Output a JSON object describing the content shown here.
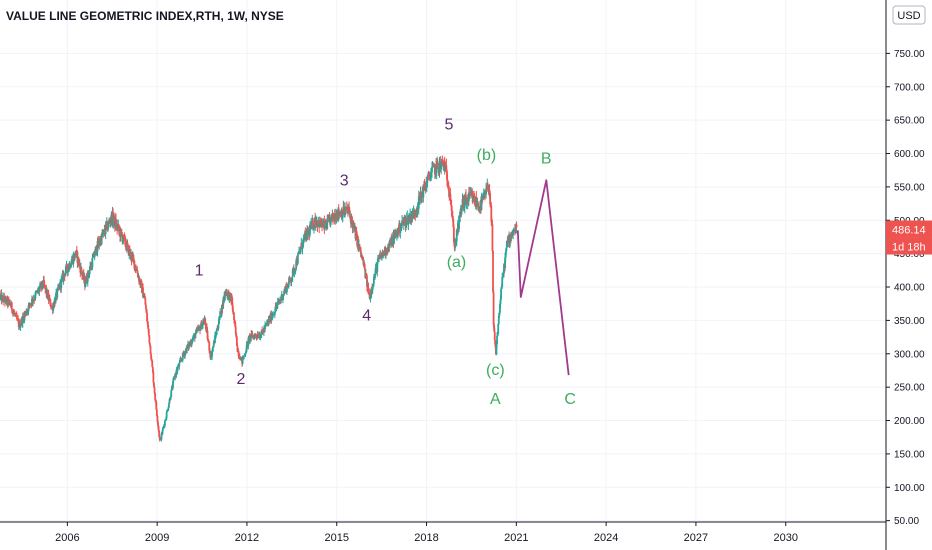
{
  "chart_data": {
    "type": "candlestick",
    "title": "VALUE LINE GEOMETRIC INDEX,RTH, 1W, NYSE",
    "currency": "USD",
    "last_price": "486.14",
    "countdown": "1d 18h",
    "ylim": [
      45,
      815
    ],
    "xlim": [
      2003.75,
      2033.35
    ],
    "y_ticks": [
      "750.00",
      "700.00",
      "650.00",
      "600.00",
      "550.00",
      "500.00",
      "450.00",
      "400.00",
      "350.00",
      "300.00",
      "250.00",
      "200.00",
      "150.00",
      "100.00",
      "50.00"
    ],
    "x_ticks": [
      "2006",
      "2009",
      "2012",
      "2015",
      "2018",
      "2021",
      "2024",
      "2027",
      "2030"
    ],
    "grid": true,
    "colors": {
      "up": "#26a69a",
      "down": "#ef5350",
      "wave_green": "#3eac5e",
      "wave_purple": "#5b2a6e",
      "projection": "#a2398f",
      "price_tag": "#ef5350"
    },
    "price_path": [
      [
        2003.75,
        385
      ],
      [
        2004.1,
        375
      ],
      [
        2004.4,
        342
      ],
      [
        2004.8,
        378
      ],
      [
        2005.2,
        405
      ],
      [
        2005.5,
        368
      ],
      [
        2005.9,
        420
      ],
      [
        2006.3,
        450
      ],
      [
        2006.6,
        405
      ],
      [
        2007.0,
        460
      ],
      [
        2007.5,
        505
      ],
      [
        2007.9,
        470
      ],
      [
        2008.3,
        430
      ],
      [
        2008.6,
        380
      ],
      [
        2008.8,
        300
      ],
      [
        2008.95,
        230
      ],
      [
        2009.1,
        168
      ],
      [
        2009.3,
        205
      ],
      [
        2009.6,
        268
      ],
      [
        2009.9,
        300
      ],
      [
        2010.3,
        330
      ],
      [
        2010.6,
        350
      ],
      [
        2010.8,
        295
      ],
      [
        2011.1,
        355
      ],
      [
        2011.3,
        395
      ],
      [
        2011.5,
        380
      ],
      [
        2011.7,
        305
      ],
      [
        2011.85,
        288
      ],
      [
        2012.1,
        325
      ],
      [
        2012.5,
        330
      ],
      [
        2013.0,
        370
      ],
      [
        2013.5,
        415
      ],
      [
        2013.9,
        470
      ],
      [
        2014.3,
        500
      ],
      [
        2014.6,
        490
      ],
      [
        2015.0,
        510
      ],
      [
        2015.4,
        515
      ],
      [
        2015.6,
        485
      ],
      [
        2015.9,
        435
      ],
      [
        2016.1,
        385
      ],
      [
        2016.4,
        440
      ],
      [
        2016.8,
        465
      ],
      [
        2017.2,
        495
      ],
      [
        2017.6,
        510
      ],
      [
        2017.9,
        545
      ],
      [
        2018.2,
        575
      ],
      [
        2018.6,
        585
      ],
      [
        2018.8,
        540
      ],
      [
        2018.95,
        460
      ],
      [
        2019.2,
        525
      ],
      [
        2019.5,
        535
      ],
      [
        2019.8,
        520
      ],
      [
        2020.1,
        553
      ],
      [
        2020.2,
        480
      ],
      [
        2020.25,
        340
      ],
      [
        2020.32,
        300
      ],
      [
        2020.5,
        395
      ],
      [
        2020.7,
        465
      ],
      [
        2020.9,
        485
      ],
      [
        2021.0,
        486
      ]
    ],
    "projection_path": [
      [
        2021.05,
        485
      ],
      [
        2021.15,
        385
      ],
      [
        2022.0,
        560
      ],
      [
        2022.75,
        268
      ]
    ],
    "wave_labels": [
      {
        "text": "1",
        "x": 2010.4,
        "y": 417,
        "group": "purple"
      },
      {
        "text": "2",
        "x": 2011.8,
        "y": 255,
        "group": "purple"
      },
      {
        "text": "3",
        "x": 2015.25,
        "y": 552,
        "group": "purple"
      },
      {
        "text": "4",
        "x": 2016.0,
        "y": 350,
        "group": "purple"
      },
      {
        "text": "5",
        "x": 2018.75,
        "y": 636,
        "group": "purple"
      },
      {
        "text": "(a)",
        "x": 2019.0,
        "y": 430,
        "group": "green"
      },
      {
        "text": "(b)",
        "x": 2020.0,
        "y": 590,
        "group": "green"
      },
      {
        "text": "(c)",
        "x": 2020.3,
        "y": 268,
        "group": "green"
      },
      {
        "text": "A",
        "x": 2020.3,
        "y": 225,
        "group": "green"
      },
      {
        "text": "B",
        "x": 2022.0,
        "y": 585,
        "group": "green"
      },
      {
        "text": "C",
        "x": 2022.8,
        "y": 225,
        "group": "green"
      }
    ]
  }
}
